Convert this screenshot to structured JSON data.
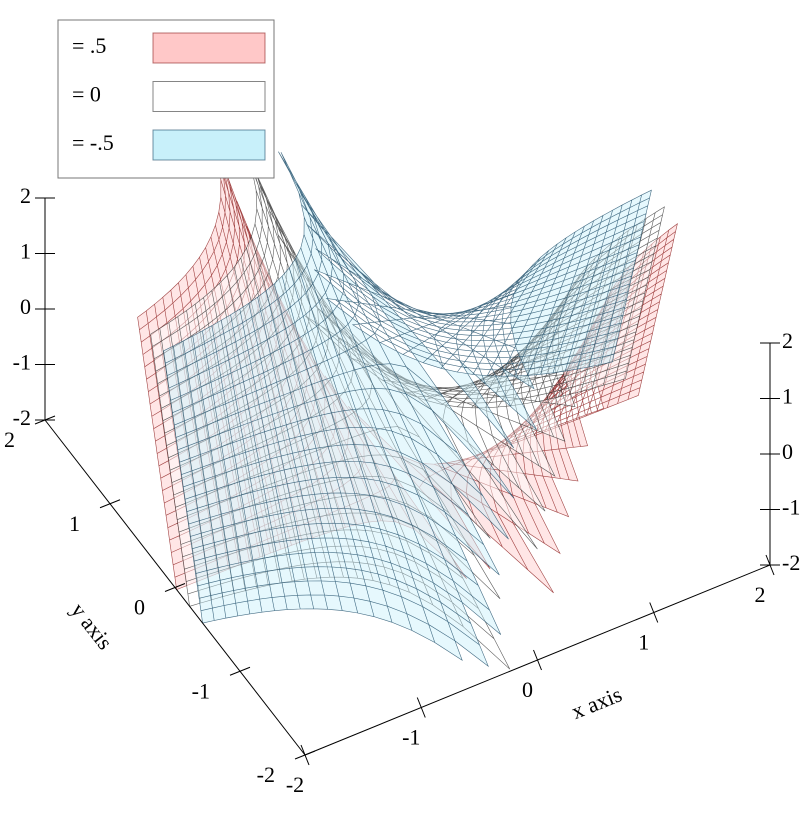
{
  "chart_data": {
    "type": "isosurface3d",
    "xlabel": "x axis",
    "ylabel": "y axis",
    "xlim": [
      -2,
      2
    ],
    "ylim": [
      -2,
      2
    ],
    "zlim": [
      -2,
      2
    ],
    "xticks": [
      -2,
      -1,
      0,
      1,
      2
    ],
    "yticks": [
      -2,
      -1,
      0,
      1,
      2
    ],
    "zticks": [
      -2,
      -1,
      0,
      1,
      2
    ],
    "series": [
      {
        "name": "= .5",
        "level": 0.5,
        "color": "#ffc8c8",
        "line_color": "#8b1a1a"
      },
      {
        "name": "= 0",
        "level": 0,
        "color": "#ffffff",
        "line_color": "#333333"
      },
      {
        "name": "= -.5",
        "level": -0.5,
        "color": "#c8f0fa",
        "line_color": "#1a4a66"
      }
    ]
  }
}
